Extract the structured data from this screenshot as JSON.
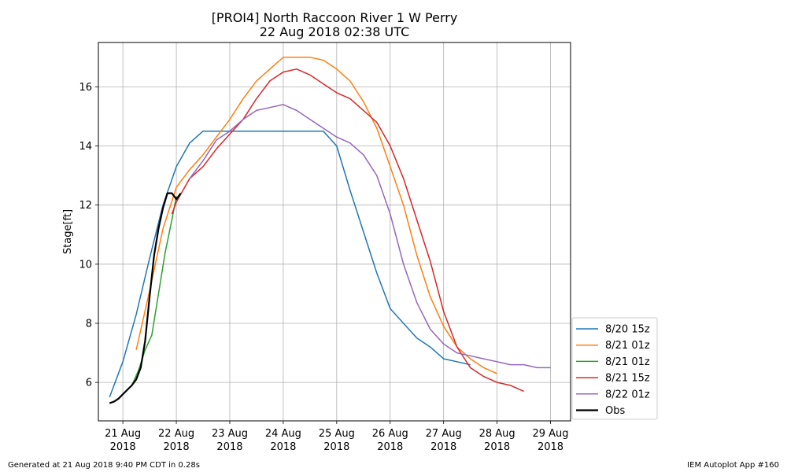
{
  "chart_data": {
    "type": "line",
    "title": "[PROI4] North Raccoon River 1 W Perry",
    "subtitle": "22 Aug 2018 02:38 UTC",
    "xlabel": "",
    "ylabel": "Stage[ft]",
    "xlim": [
      "2018-08-20T13:00",
      "2018-08-29T09:00"
    ],
    "ylim": [
      4.7,
      17.5
    ],
    "grid": true,
    "legend_position": "lower-right",
    "x_ticks": [
      {
        "date": "2018-08-21T00:00",
        "line1": "21 Aug",
        "line2": "2018"
      },
      {
        "date": "2018-08-22T00:00",
        "line1": "22 Aug",
        "line2": "2018"
      },
      {
        "date": "2018-08-23T00:00",
        "line1": "23 Aug",
        "line2": "2018"
      },
      {
        "date": "2018-08-24T00:00",
        "line1": "24 Aug",
        "line2": "2018"
      },
      {
        "date": "2018-08-25T00:00",
        "line1": "25 Aug",
        "line2": "2018"
      },
      {
        "date": "2018-08-26T00:00",
        "line1": "26 Aug",
        "line2": "2018"
      },
      {
        "date": "2018-08-27T00:00",
        "line1": "27 Aug",
        "line2": "2018"
      },
      {
        "date": "2018-08-28T00:00",
        "line1": "28 Aug",
        "line2": "2018"
      },
      {
        "date": "2018-08-29T00:00",
        "line1": "29 Aug",
        "line2": "2018"
      }
    ],
    "y_ticks": [
      6,
      8,
      10,
      12,
      14,
      16
    ],
    "series": [
      {
        "name": "8/20 15z",
        "color": "#1f77b4",
        "width": 1.5,
        "x": [
          "2018-08-20T18:00",
          "2018-08-21T00:00",
          "2018-08-21T06:00",
          "2018-08-21T12:00",
          "2018-08-21T18:00",
          "2018-08-22T00:00",
          "2018-08-22T06:00",
          "2018-08-22T12:00",
          "2018-08-22T18:00",
          "2018-08-23T00:00",
          "2018-08-23T06:00",
          "2018-08-23T12:00",
          "2018-08-23T18:00",
          "2018-08-24T00:00",
          "2018-08-24T06:00",
          "2018-08-24T12:00",
          "2018-08-24T18:00",
          "2018-08-25T00:00",
          "2018-08-25T06:00",
          "2018-08-25T12:00",
          "2018-08-25T18:00",
          "2018-08-26T00:00",
          "2018-08-26T06:00",
          "2018-08-26T12:00",
          "2018-08-26T18:00",
          "2018-08-27T00:00",
          "2018-08-27T06:00",
          "2018-08-27T12:00"
        ],
        "y": [
          5.5,
          6.7,
          8.3,
          10.2,
          12.0,
          13.3,
          14.1,
          14.5,
          14.5,
          14.5,
          14.5,
          14.5,
          14.5,
          14.5,
          14.5,
          14.5,
          14.5,
          14.0,
          12.5,
          11.1,
          9.7,
          8.5,
          8.0,
          7.5,
          7.2,
          6.8,
          6.7,
          6.6
        ]
      },
      {
        "name": "8/21 01z",
        "color": "#ff7f0e",
        "width": 1.5,
        "x": [
          "2018-08-21T06:00",
          "2018-08-21T12:00",
          "2018-08-21T18:00",
          "2018-08-22T00:00",
          "2018-08-22T06:00",
          "2018-08-22T12:00",
          "2018-08-22T18:00",
          "2018-08-23T00:00",
          "2018-08-23T06:00",
          "2018-08-23T12:00",
          "2018-08-23T18:00",
          "2018-08-24T00:00",
          "2018-08-24T06:00",
          "2018-08-24T12:00",
          "2018-08-24T18:00",
          "2018-08-25T00:00",
          "2018-08-25T06:00",
          "2018-08-25T12:00",
          "2018-08-25T18:00",
          "2018-08-26T00:00",
          "2018-08-26T06:00",
          "2018-08-26T12:00",
          "2018-08-26T18:00",
          "2018-08-27T00:00",
          "2018-08-27T06:00",
          "2018-08-27T12:00",
          "2018-08-27T18:00",
          "2018-08-28T00:00"
        ],
        "y": [
          7.1,
          9.1,
          11.2,
          12.6,
          13.2,
          13.7,
          14.3,
          14.9,
          15.6,
          16.2,
          16.6,
          17.0,
          17.0,
          17.0,
          16.9,
          16.6,
          16.2,
          15.5,
          14.6,
          13.3,
          12.0,
          10.3,
          8.9,
          7.9,
          7.2,
          6.8,
          6.5,
          6.3
        ]
      },
      {
        "name": "8/21 01z",
        "color": "#2ca02c",
        "width": 1.5,
        "x": [
          "2018-08-21T04:00",
          "2018-08-21T07:00",
          "2018-08-21T10:00",
          "2018-08-21T13:00",
          "2018-08-21T16:00",
          "2018-08-21T19:00",
          "2018-08-21T22:00",
          "2018-08-22T00:00"
        ],
        "y": [
          5.9,
          6.4,
          7.1,
          7.6,
          9.0,
          10.4,
          11.5,
          12.3
        ]
      },
      {
        "name": "8/21 15z",
        "color": "#d62728",
        "width": 1.5,
        "x": [
          "2018-08-21T22:00",
          "2018-08-22T00:00",
          "2018-08-22T06:00",
          "2018-08-22T12:00",
          "2018-08-22T18:00",
          "2018-08-23T00:00",
          "2018-08-23T06:00",
          "2018-08-23T12:00",
          "2018-08-23T18:00",
          "2018-08-24T00:00",
          "2018-08-24T06:00",
          "2018-08-24T12:00",
          "2018-08-24T18:00",
          "2018-08-25T00:00",
          "2018-08-25T06:00",
          "2018-08-25T12:00",
          "2018-08-25T18:00",
          "2018-08-26T00:00",
          "2018-08-26T06:00",
          "2018-08-26T12:00",
          "2018-08-26T18:00",
          "2018-08-27T00:00",
          "2018-08-27T06:00",
          "2018-08-27T12:00",
          "2018-08-27T18:00",
          "2018-08-28T00:00",
          "2018-08-28T06:00",
          "2018-08-28T12:00"
        ],
        "y": [
          11.7,
          12.1,
          12.9,
          13.3,
          13.9,
          14.4,
          14.9,
          15.6,
          16.2,
          16.5,
          16.6,
          16.4,
          16.1,
          15.8,
          15.6,
          15.2,
          14.8,
          14.0,
          12.9,
          11.5,
          10.1,
          8.4,
          7.2,
          6.5,
          6.2,
          6.0,
          5.9,
          5.7
        ]
      },
      {
        "name": "8/22 01z",
        "color": "#9467bd",
        "width": 1.5,
        "x": [
          "2018-08-22T06:00",
          "2018-08-22T12:00",
          "2018-08-22T18:00",
          "2018-08-23T00:00",
          "2018-08-23T06:00",
          "2018-08-23T12:00",
          "2018-08-23T18:00",
          "2018-08-24T00:00",
          "2018-08-24T06:00",
          "2018-08-24T12:00",
          "2018-08-24T18:00",
          "2018-08-25T00:00",
          "2018-08-25T06:00",
          "2018-08-25T12:00",
          "2018-08-25T18:00",
          "2018-08-26T00:00",
          "2018-08-26T06:00",
          "2018-08-26T12:00",
          "2018-08-26T18:00",
          "2018-08-27T00:00",
          "2018-08-27T06:00",
          "2018-08-27T12:00",
          "2018-08-27T18:00",
          "2018-08-28T00:00",
          "2018-08-28T06:00",
          "2018-08-28T12:00",
          "2018-08-28T18:00",
          "2018-08-29T00:00"
        ],
        "y": [
          12.9,
          13.5,
          14.2,
          14.5,
          14.9,
          15.2,
          15.3,
          15.4,
          15.2,
          14.9,
          14.6,
          14.3,
          14.1,
          13.7,
          13.0,
          11.7,
          10.0,
          8.7,
          7.8,
          7.3,
          7.0,
          6.9,
          6.8,
          6.7,
          6.6,
          6.6,
          6.5,
          6.5
        ]
      },
      {
        "name": "Obs",
        "color": "#000000",
        "width": 2.2,
        "x": [
          "2018-08-20T18:00",
          "2018-08-20T20:00",
          "2018-08-20T22:00",
          "2018-08-21T00:00",
          "2018-08-21T02:00",
          "2018-08-21T04:00",
          "2018-08-21T06:00",
          "2018-08-21T08:00",
          "2018-08-21T10:00",
          "2018-08-21T12:00",
          "2018-08-21T14:00",
          "2018-08-21T16:00",
          "2018-08-21T18:00",
          "2018-08-21T20:00",
          "2018-08-21T22:00",
          "2018-08-22T00:00",
          "2018-08-22T01:00",
          "2018-08-22T02:00"
        ],
        "y": [
          5.3,
          5.35,
          5.45,
          5.6,
          5.75,
          5.9,
          6.1,
          6.5,
          7.4,
          8.9,
          10.3,
          11.2,
          11.9,
          12.4,
          12.4,
          12.2,
          12.3,
          12.4
        ]
      }
    ]
  },
  "footer": {
    "left": "Generated at 21 Aug 2018 9:40 PM CDT in 0.28s",
    "right": "IEM Autoplot App #160"
  }
}
